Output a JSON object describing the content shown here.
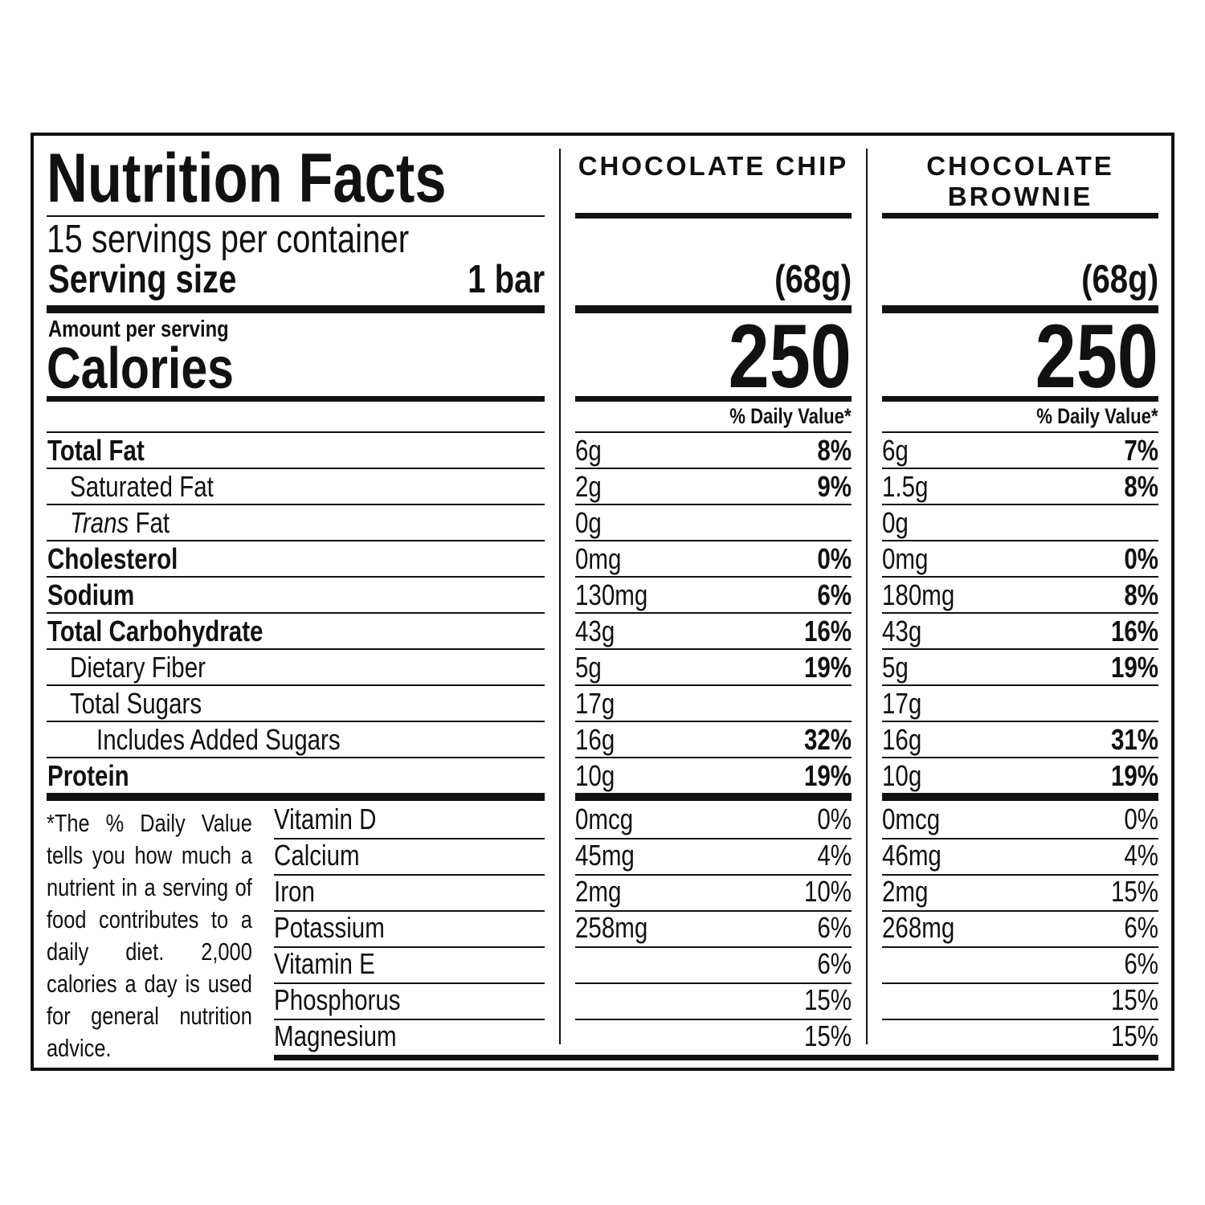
{
  "title": "Nutrition Facts",
  "servings_per_container": "15 servings per container",
  "serving_size_label": "Serving size",
  "serving_size_value": "1 bar",
  "amount_per_serving": "Amount per serving",
  "calories_label": "Calories",
  "daily_value_header": "% Daily Value*",
  "nutrients": [
    {
      "label": "Total Fat",
      "bold": true,
      "indent": 0
    },
    {
      "label": "Saturated Fat",
      "bold": false,
      "indent": 1
    },
    {
      "label_italic": "Trans",
      "label": " Fat",
      "bold": false,
      "indent": 1
    },
    {
      "label": "Cholesterol",
      "bold": true,
      "indent": 0
    },
    {
      "label": "Sodium",
      "bold": true,
      "indent": 0
    },
    {
      "label": "Total Carbohydrate",
      "bold": true,
      "indent": 0
    },
    {
      "label": "Dietary Fiber",
      "bold": false,
      "indent": 1
    },
    {
      "label": "Total Sugars",
      "bold": false,
      "indent": 1
    },
    {
      "label": "Includes Added Sugars",
      "bold": false,
      "indent": 2
    },
    {
      "label": "Protein",
      "bold": true,
      "indent": 0
    }
  ],
  "vitamins": [
    "Vitamin D",
    "Calcium",
    "Iron",
    "Potassium",
    "Vitamin E",
    "Phosphorus",
    "Magnesium"
  ],
  "footnote": "*The % Daily Value tells you how much a nutrient in a serving of food contributes to a daily diet. 2,000 calories a day is used for general nutrition advice.",
  "products": [
    {
      "name": "CHOCOLATE CHIP",
      "serving_grams": "(68g)",
      "calories": "250",
      "nutrients": [
        {
          "amount": "6g",
          "dv": "8%"
        },
        {
          "amount": "2g",
          "dv": "9%"
        },
        {
          "amount": "0g",
          "dv": ""
        },
        {
          "amount": "0mg",
          "dv": "0%"
        },
        {
          "amount": "130mg",
          "dv": "6%"
        },
        {
          "amount": "43g",
          "dv": "16%"
        },
        {
          "amount": "5g",
          "dv": "19%"
        },
        {
          "amount": "17g",
          "dv": ""
        },
        {
          "amount": "16g",
          "dv": "32%"
        },
        {
          "amount": "10g",
          "dv": "19%"
        }
      ],
      "vitamins": [
        {
          "amount": "0mcg",
          "dv": "0%"
        },
        {
          "amount": "45mg",
          "dv": "4%"
        },
        {
          "amount": "2mg",
          "dv": "10%"
        },
        {
          "amount": "258mg",
          "dv": "6%"
        },
        {
          "amount": "",
          "dv": "6%"
        },
        {
          "amount": "",
          "dv": "15%"
        },
        {
          "amount": "",
          "dv": "15%"
        }
      ]
    },
    {
      "name": "CHOCOLATE BROWNIE",
      "serving_grams": "(68g)",
      "calories": "250",
      "nutrients": [
        {
          "amount": "6g",
          "dv": "7%"
        },
        {
          "amount": "1.5g",
          "dv": "8%"
        },
        {
          "amount": "0g",
          "dv": ""
        },
        {
          "amount": "0mg",
          "dv": "0%"
        },
        {
          "amount": "180mg",
          "dv": "8%"
        },
        {
          "amount": "43g",
          "dv": "16%"
        },
        {
          "amount": "5g",
          "dv": "19%"
        },
        {
          "amount": "17g",
          "dv": ""
        },
        {
          "amount": "16g",
          "dv": "31%"
        },
        {
          "amount": "10g",
          "dv": "19%"
        }
      ],
      "vitamins": [
        {
          "amount": "0mcg",
          "dv": "0%"
        },
        {
          "amount": "46mg",
          "dv": "4%"
        },
        {
          "amount": "2mg",
          "dv": "15%"
        },
        {
          "amount": "268mg",
          "dv": "6%"
        },
        {
          "amount": "",
          "dv": "6%"
        },
        {
          "amount": "",
          "dv": "15%"
        },
        {
          "amount": "",
          "dv": "15%"
        }
      ]
    }
  ]
}
